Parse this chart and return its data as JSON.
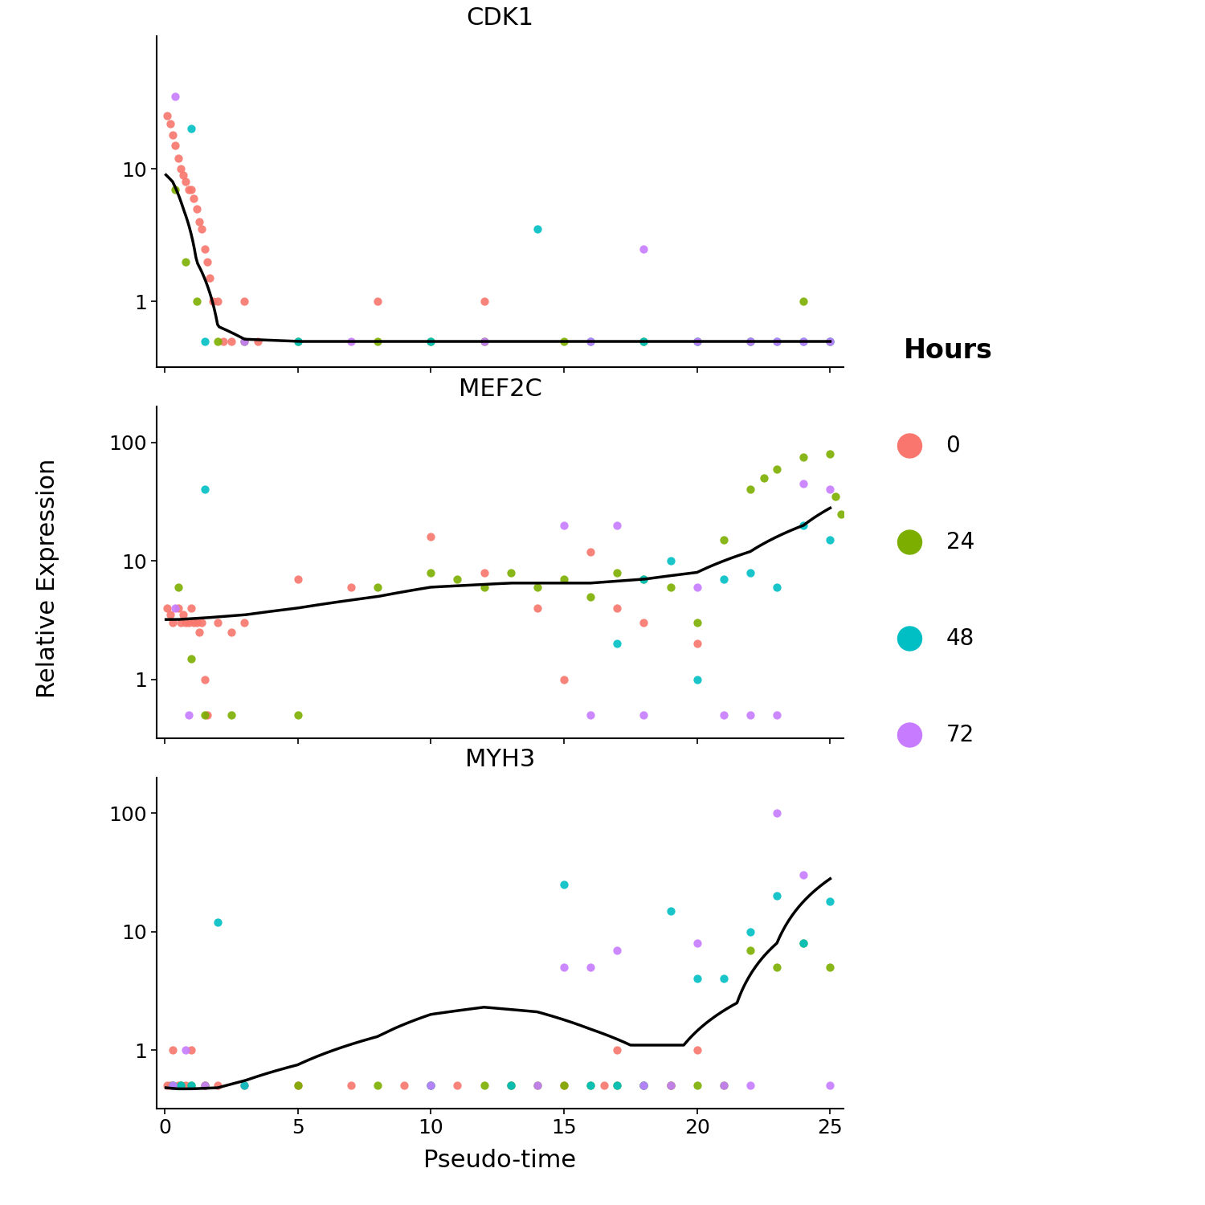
{
  "genes": [
    "CDK1",
    "MEF2C",
    "MYH3"
  ],
  "xlabel": "Pseudo-time",
  "ylabel": "Relative Expression",
  "xlim": [
    -0.3,
    25.5
  ],
  "colors": {
    "0": "#F8766D",
    "24": "#7CAE00",
    "48": "#00BFC4",
    "72": "#C77CFF"
  },
  "legend_labels": [
    "0",
    "24",
    "48",
    "72"
  ],
  "legend_title": "Hours",
  "point_size": 55,
  "line_color": "black",
  "line_width": 2.5,
  "CDK1": {
    "scatter": {
      "x_0": [
        0.1,
        0.2,
        0.3,
        0.4,
        0.5,
        0.6,
        0.7,
        0.8,
        0.9,
        1.0,
        1.1,
        1.2,
        1.3,
        1.4,
        1.5,
        1.6,
        1.7,
        1.8,
        2.0,
        2.2,
        2.5,
        3.0,
        3.5,
        8.0,
        12.0
      ],
      "y_0": [
        25,
        22,
        18,
        15,
        12,
        10,
        9,
        8,
        7,
        7,
        6,
        5,
        4,
        3.5,
        2.5,
        2.0,
        1.5,
        1.0,
        1.0,
        0.5,
        0.5,
        1.0,
        0.5,
        1.0,
        1.0
      ],
      "x_24": [
        0.4,
        0.8,
        1.2,
        2.0,
        3.0,
        5.0,
        8.0,
        10.0,
        12.0,
        15.0,
        18.0,
        20.0,
        22.0,
        24.0,
        25.0
      ],
      "y_24": [
        7,
        2,
        1,
        0.5,
        0.5,
        0.5,
        0.5,
        0.5,
        0.5,
        0.5,
        0.5,
        0.5,
        0.5,
        1,
        0.5
      ],
      "x_48": [
        1.0,
        1.5,
        5.0,
        10.0,
        14.0,
        16.0,
        18.0,
        20.0,
        22.0,
        23.0,
        24.0,
        25.0
      ],
      "y_48": [
        20,
        0.5,
        0.5,
        0.5,
        3.5,
        0.5,
        0.5,
        0.5,
        0.5,
        0.5,
        0.5,
        0.5
      ],
      "x_72": [
        0.4,
        3.0,
        7.0,
        12.0,
        16.0,
        18.0,
        20.0,
        22.0,
        23.0,
        24.0,
        25.0
      ],
      "y_72": [
        35,
        0.5,
        0.5,
        0.5,
        0.5,
        2.5,
        0.5,
        0.5,
        0.5,
        0.5,
        0.5
      ]
    },
    "curve_x": [
      0.05,
      0.3,
      0.7,
      1.2,
      2.0,
      3.0,
      5.0,
      8.0,
      12.0,
      18.0,
      25.0
    ],
    "curve_y": [
      9.0,
      8.0,
      5.0,
      2.0,
      0.65,
      0.52,
      0.5,
      0.5,
      0.5,
      0.5,
      0.5
    ],
    "ylim": [
      0.32,
      100
    ],
    "yticks": [
      1,
      10
    ],
    "yticklabels": [
      "1",
      "10"
    ]
  },
  "MEF2C": {
    "scatter": {
      "x_0": [
        0.1,
        0.2,
        0.3,
        0.5,
        0.6,
        0.7,
        0.8,
        0.9,
        1.0,
        1.1,
        1.2,
        1.3,
        1.4,
        1.5,
        1.6,
        2.0,
        2.5,
        3.0,
        5.0,
        7.0,
        10.0,
        12.0,
        14.0,
        15.0,
        16.0,
        17.0,
        18.0,
        20.0
      ],
      "y_0": [
        4,
        3.5,
        3,
        4,
        3,
        3.5,
        3,
        3,
        4,
        3,
        3,
        2.5,
        3,
        1,
        0.5,
        3,
        2.5,
        3,
        7,
        6,
        16,
        8,
        4,
        1,
        12,
        4,
        3,
        2
      ],
      "x_24": [
        0.5,
        1.0,
        1.5,
        2.5,
        5.0,
        8.0,
        10.0,
        11.0,
        12.0,
        13.0,
        14.0,
        15.0,
        16.0,
        17.0,
        18.0,
        19.0,
        20.0,
        21.0,
        22.0,
        22.5,
        23.0,
        24.0,
        25.0,
        25.2,
        25.4
      ],
      "y_24": [
        6,
        1.5,
        0.5,
        0.5,
        0.5,
        6,
        8,
        7,
        6,
        8,
        6,
        7,
        5,
        8,
        7,
        6,
        3,
        15,
        40,
        50,
        60,
        75,
        80,
        35,
        25
      ],
      "x_48": [
        1.5,
        17.0,
        18.0,
        19.0,
        20.0,
        21.0,
        22.0,
        23.0,
        24.0,
        25.0
      ],
      "y_48": [
        40,
        2,
        7,
        10,
        1,
        7,
        8,
        6,
        20,
        15
      ],
      "x_72": [
        0.4,
        0.9,
        15.0,
        16.0,
        17.0,
        18.0,
        20.0,
        21.0,
        22.0,
        23.0,
        24.0,
        25.0
      ],
      "y_72": [
        4,
        0.5,
        20,
        0.5,
        20,
        0.5,
        6,
        0.5,
        0.5,
        0.5,
        45,
        40
      ]
    },
    "curve_x": [
      0.05,
      0.5,
      1.5,
      3.0,
      5.0,
      8.0,
      10.0,
      13.0,
      16.0,
      18.0,
      20.0,
      22.0,
      24.0,
      25.0
    ],
    "curve_y": [
      3.2,
      3.2,
      3.3,
      3.5,
      4.0,
      5.0,
      6.0,
      6.5,
      6.5,
      7.0,
      8.0,
      12.0,
      20.0,
      28.0
    ],
    "ylim": [
      0.32,
      200
    ],
    "yticks": [
      1,
      10,
      100
    ],
    "yticklabels": [
      "1",
      "10",
      "100"
    ]
  },
  "MYH3": {
    "scatter": {
      "x_0": [
        0.1,
        0.2,
        0.3,
        0.5,
        0.6,
        0.8,
        1.0,
        1.5,
        2.0,
        3.0,
        5.0,
        7.0,
        9.0,
        11.0,
        13.0,
        15.0,
        16.5,
        17.0,
        18.0,
        19.0,
        20.0
      ],
      "y_0": [
        0.5,
        0.5,
        1.0,
        0.5,
        0.5,
        0.5,
        1.0,
        0.5,
        0.5,
        0.5,
        0.5,
        0.5,
        0.5,
        0.5,
        0.5,
        0.5,
        0.5,
        1.0,
        0.5,
        0.5,
        1.0
      ],
      "x_24": [
        0.3,
        0.6,
        1.0,
        1.5,
        5.0,
        8.0,
        10.0,
        12.0,
        13.0,
        14.0,
        15.0,
        16.0,
        17.0,
        18.0,
        19.0,
        20.0,
        21.0,
        22.0,
        23.0,
        24.0,
        25.0
      ],
      "y_24": [
        0.5,
        0.5,
        0.5,
        0.5,
        0.5,
        0.5,
        0.5,
        0.5,
        0.5,
        0.5,
        0.5,
        0.5,
        0.5,
        0.5,
        0.5,
        0.5,
        0.5,
        7,
        5,
        8,
        5
      ],
      "x_48": [
        0.3,
        0.6,
        1.0,
        2.0,
        3.0,
        10.0,
        13.0,
        15.0,
        16.0,
        17.0,
        18.0,
        19.0,
        20.0,
        21.0,
        22.0,
        23.0,
        24.0,
        25.0
      ],
      "y_48": [
        0.5,
        0.5,
        0.5,
        12,
        0.5,
        0.5,
        0.5,
        25,
        0.5,
        0.5,
        0.5,
        15,
        4,
        4,
        10,
        20,
        8,
        18
      ],
      "x_72": [
        0.3,
        0.8,
        1.5,
        10.0,
        14.0,
        15.0,
        16.0,
        17.0,
        18.0,
        19.0,
        20.0,
        21.0,
        22.0,
        23.0,
        24.0,
        25.0
      ],
      "y_72": [
        0.5,
        1.0,
        0.5,
        0.5,
        0.5,
        5,
        5,
        7,
        0.5,
        0.5,
        8,
        0.5,
        0.5,
        100,
        30,
        0.5
      ]
    },
    "curve_x": [
      0.05,
      0.5,
      1.0,
      2.0,
      3.0,
      5.0,
      8.0,
      10.0,
      12.0,
      14.0,
      16.0,
      17.5,
      19.5,
      21.5,
      23.0,
      25.0
    ],
    "curve_y": [
      0.48,
      0.47,
      0.47,
      0.48,
      0.55,
      0.75,
      1.3,
      2.0,
      2.3,
      2.1,
      1.5,
      1.1,
      1.1,
      2.5,
      8.0,
      28.0
    ],
    "ylim": [
      0.32,
      200
    ],
    "yticks": [
      1,
      10,
      100
    ],
    "yticklabels": [
      "1",
      "10",
      "100"
    ]
  }
}
